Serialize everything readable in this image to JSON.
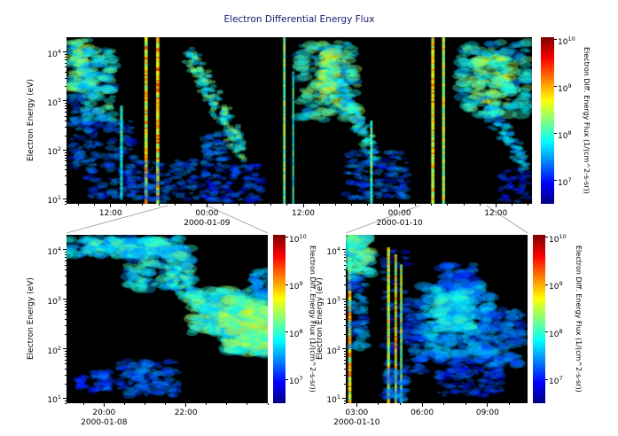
{
  "figure": {
    "title": "Electron Differential Energy Flux",
    "title_color": "#1a1a6e",
    "background_color": "#ffffff",
    "plot_background_color": "#000000",
    "connector_line_color": "#999999"
  },
  "energy_axis": {
    "label": "Electron Energy (eV)",
    "tick_exponents": [
      4,
      3,
      2,
      1
    ],
    "log10_range": [
      0.9,
      4.3
    ]
  },
  "colorbar": {
    "label": "Electron Diff. Energy Flux (1/(cm^2-s-sr))",
    "tick_exponents": [
      10,
      9,
      8,
      7
    ],
    "flux_log10_range": [
      6.5,
      10.05
    ]
  },
  "chart_data": [
    {
      "id": "top",
      "type": "heatmap",
      "title": "Electron Differential Energy Flux",
      "ylabel": "Electron Energy (eV)",
      "time_origin": "2000-01-08 00:00",
      "time_range_min": [
        390,
        3870
      ],
      "minor_step_min": 120,
      "seed": 11,
      "x_ticks": [
        {
          "t": 720,
          "label": "12:00"
        },
        {
          "t": 1440,
          "label": "00:00",
          "date": "2000-01-09"
        },
        {
          "t": 2160,
          "label": "12:00"
        },
        {
          "t": 2880,
          "label": "00:00",
          "date": "2000-01-10"
        },
        {
          "t": 3600,
          "label": "12:00"
        }
      ],
      "features": [
        {
          "kind": "blob",
          "x": [
            0.005,
            0.05
          ],
          "e": [
            3.2,
            4.25
          ],
          "flux": 8.3,
          "n": 100,
          "r": 2
        },
        {
          "kind": "blob",
          "x": [
            0.01,
            0.06
          ],
          "e": [
            1.6,
            3.2
          ],
          "flux": 7.5,
          "n": 70,
          "r": 1.5
        },
        {
          "kind": "blob",
          "x": [
            0.035,
            0.1
          ],
          "e": [
            2.6,
            4.05
          ],
          "flux": 8.1,
          "n": 120,
          "r": 2
        },
        {
          "kind": "blob",
          "x": [
            0.04,
            0.145
          ],
          "e": [
            1.0,
            2.6
          ],
          "flux": 7.4,
          "n": 140,
          "r": 1.4
        },
        {
          "kind": "line",
          "x": 0.118,
          "w": 0.006,
          "e": [
            1.0,
            2.9
          ],
          "flux": 7.9
        },
        {
          "kind": "line",
          "x": 0.171,
          "w": 0.007,
          "e": [
            0.9,
            4.3
          ],
          "flux": 8.8
        },
        {
          "kind": "line",
          "x": 0.196,
          "w": 0.007,
          "e": [
            0.9,
            4.3
          ],
          "flux": 8.9
        },
        {
          "kind": "blob",
          "x": [
            0.13,
            0.28
          ],
          "e": [
            0.95,
            1.8
          ],
          "flux": 7.4,
          "n": 170,
          "r": 1.2
        },
        {
          "kind": "diag",
          "x": [
            0.262,
            0.378
          ],
          "e": [
            3.95,
            2.0
          ],
          "flux": 8.2,
          "n": 220,
          "th": 0.5
        },
        {
          "kind": "blob",
          "x": [
            0.29,
            0.42
          ],
          "e": [
            0.95,
            1.7
          ],
          "flux": 7.3,
          "n": 160,
          "r": 1.2
        },
        {
          "kind": "blob",
          "x": [
            0.295,
            0.345
          ],
          "e": [
            1.7,
            2.35
          ],
          "flux": 7.5,
          "n": 60,
          "r": 1.3
        },
        {
          "kind": "line",
          "x": 0.468,
          "w": 0.005,
          "e": [
            0.9,
            4.3
          ],
          "flux": 8.3
        },
        {
          "kind": "line",
          "x": 0.487,
          "w": 0.004,
          "e": [
            0.9,
            3.6
          ],
          "flux": 8.0
        },
        {
          "kind": "blob",
          "x": [
            0.5,
            0.625
          ],
          "e": [
            2.6,
            4.2
          ],
          "flux": 8.2,
          "n": 180,
          "r": 2.2
        },
        {
          "kind": "blob",
          "x": [
            0.545,
            0.58
          ],
          "e": [
            3.0,
            4.05
          ],
          "flux": 8.6,
          "n": 70,
          "r": 1.8
        },
        {
          "kind": "diag",
          "x": [
            0.585,
            0.665
          ],
          "e": [
            3.4,
            1.8
          ],
          "flux": 8.0,
          "n": 150,
          "th": 0.45
        },
        {
          "kind": "blob",
          "x": [
            0.6,
            0.735
          ],
          "e": [
            1.0,
            2.0
          ],
          "flux": 7.4,
          "n": 170,
          "r": 1.3
        },
        {
          "kind": "line",
          "x": 0.655,
          "w": 0.005,
          "e": [
            0.9,
            2.6
          ],
          "flux": 8.1
        },
        {
          "kind": "line",
          "x": 0.787,
          "w": 0.007,
          "e": [
            0.9,
            4.3
          ],
          "flux": 8.8
        },
        {
          "kind": "line",
          "x": 0.81,
          "w": 0.006,
          "e": [
            0.9,
            4.3
          ],
          "flux": 8.5
        },
        {
          "kind": "blob",
          "x": [
            0.84,
            1.0
          ],
          "e": [
            2.7,
            4.2
          ],
          "flux": 8.1,
          "n": 170,
          "r": 2.2
        },
        {
          "kind": "blob",
          "x": [
            0.875,
            0.955
          ],
          "e": [
            2.9,
            3.95
          ],
          "flux": 8.5,
          "n": 90,
          "r": 2
        },
        {
          "kind": "diag",
          "x": [
            0.9,
            0.99
          ],
          "e": [
            2.9,
            1.7
          ],
          "flux": 7.8,
          "n": 110,
          "th": 0.4
        },
        {
          "kind": "blob",
          "x": [
            0.93,
            1.0
          ],
          "e": [
            0.95,
            1.6
          ],
          "flux": 7.2,
          "n": 60,
          "r": 1.1
        }
      ]
    },
    {
      "id": "bl",
      "type": "heatmap",
      "ylabel": "Electron Energy (eV)",
      "time_origin": "2000-01-08 00:00",
      "time_range_min": [
        1145,
        1440
      ],
      "minor_step_min": 30,
      "seed": 22,
      "x_ticks": [
        {
          "t": 1200,
          "label": "20:00",
          "date": "2000-01-08"
        },
        {
          "t": 1320,
          "label": "22:00"
        }
      ],
      "features": [
        {
          "kind": "blob",
          "x": [
            0.0,
            0.58
          ],
          "e": [
            3.85,
            4.25
          ],
          "flux": 7.8,
          "n": 220,
          "r": 1.8
        },
        {
          "kind": "blob",
          "x": [
            0.1,
            0.5
          ],
          "e": [
            3.95,
            4.2
          ],
          "flux": 8.1,
          "n": 130,
          "r": 1.8
        },
        {
          "kind": "blob",
          "x": [
            0.3,
            0.62
          ],
          "e": [
            3.2,
            4.05
          ],
          "flux": 8.0,
          "n": 160,
          "r": 2.2
        },
        {
          "kind": "diag",
          "x": [
            0.5,
            0.8
          ],
          "e": [
            3.6,
            2.3
          ],
          "flux": 8.1,
          "n": 240,
          "th": 0.55
        },
        {
          "kind": "blob",
          "x": [
            0.62,
            0.9
          ],
          "e": [
            2.3,
            3.2
          ],
          "flux": 8.2,
          "n": 200,
          "r": 2.4
        },
        {
          "kind": "blob",
          "x": [
            0.8,
            1.0
          ],
          "e": [
            1.9,
            3.0
          ],
          "flux": 8.4,
          "n": 220,
          "r": 2.6
        },
        {
          "kind": "blob",
          "x": [
            0.88,
            1.0
          ],
          "e": [
            2.0,
            2.8
          ],
          "flux": 8.7,
          "n": 140,
          "r": 2.4
        },
        {
          "kind": "blob",
          "x": [
            0.92,
            1.0
          ],
          "e": [
            3.0,
            3.6
          ],
          "flux": 7.7,
          "n": 60,
          "r": 1.6
        },
        {
          "kind": "blob",
          "x": [
            0.13,
            0.22
          ],
          "e": [
            1.15,
            1.55
          ],
          "flux": 7.3,
          "n": 60,
          "r": 1.4
        },
        {
          "kind": "blob",
          "x": [
            0.26,
            0.56
          ],
          "e": [
            1.05,
            1.75
          ],
          "flux": 7.4,
          "n": 150,
          "r": 1.6
        },
        {
          "kind": "blob",
          "x": [
            0.05,
            0.1
          ],
          "e": [
            1.2,
            1.45
          ],
          "flux": 7.2,
          "n": 30,
          "r": 1.2
        }
      ]
    },
    {
      "id": "br",
      "type": "heatmap",
      "ylabel": "Electron Energy (eV)",
      "time_origin": "2000-01-08 00:00",
      "time_range_min": [
        3030,
        3530
      ],
      "minor_step_min": 60,
      "seed": 33,
      "x_ticks": [
        {
          "t": 3060,
          "label": "03:00",
          "date": "2000-01-10"
        },
        {
          "t": 3240,
          "label": "06:00"
        },
        {
          "t": 3420,
          "label": "09:00"
        }
      ],
      "features": [
        {
          "kind": "line",
          "x": 0.022,
          "w": 0.018,
          "e": [
            0.9,
            4.3
          ],
          "flux": 8.8
        },
        {
          "kind": "blob",
          "x": [
            0.0,
            0.14
          ],
          "e": [
            3.5,
            4.3
          ],
          "flux": 8.2,
          "n": 130,
          "r": 2
        },
        {
          "kind": "blob",
          "x": [
            0.02,
            0.11
          ],
          "e": [
            2.0,
            3.5
          ],
          "flux": 7.6,
          "n": 90,
          "r": 1.6
        },
        {
          "kind": "blob",
          "x": [
            0.2,
            0.34
          ],
          "e": [
            1.0,
            4.0
          ],
          "flux": 7.3,
          "n": 100,
          "r": 1.3
        },
        {
          "kind": "line",
          "x": 0.235,
          "w": 0.016,
          "e": [
            0.9,
            4.05
          ],
          "flux": 8.6
        },
        {
          "kind": "line",
          "x": 0.275,
          "w": 0.014,
          "e": [
            0.9,
            3.9
          ],
          "flux": 8.8
        },
        {
          "kind": "line",
          "x": 0.305,
          "w": 0.013,
          "e": [
            0.9,
            3.7
          ],
          "flux": 8.4
        },
        {
          "kind": "blob",
          "x": [
            0.215,
            0.33
          ],
          "e": [
            0.95,
            1.6
          ],
          "flux": 7.5,
          "n": 70,
          "r": 1.3
        },
        {
          "kind": "blob",
          "x": [
            0.33,
            0.44
          ],
          "e": [
            1.5,
            3.0
          ],
          "flux": 7.4,
          "n": 90,
          "r": 1.6
        },
        {
          "kind": "blob",
          "x": [
            0.42,
            0.8
          ],
          "e": [
            1.8,
            3.3
          ],
          "flux": 7.7,
          "n": 280,
          "r": 2.2
        },
        {
          "kind": "blob",
          "x": [
            0.5,
            0.68
          ],
          "e": [
            2.4,
            3.2
          ],
          "flux": 8.0,
          "n": 130,
          "r": 2.2
        },
        {
          "kind": "blob",
          "x": [
            0.52,
            0.72
          ],
          "e": [
            3.2,
            3.7
          ],
          "flux": 7.4,
          "n": 80,
          "r": 1.8
        },
        {
          "kind": "blob",
          "x": [
            0.5,
            0.86
          ],
          "e": [
            1.05,
            1.8
          ],
          "flux": 7.3,
          "n": 150,
          "r": 1.4
        },
        {
          "kind": "blob",
          "x": [
            0.76,
            0.98
          ],
          "e": [
            1.6,
            2.8
          ],
          "flux": 7.5,
          "n": 130,
          "r": 1.8
        }
      ]
    }
  ]
}
